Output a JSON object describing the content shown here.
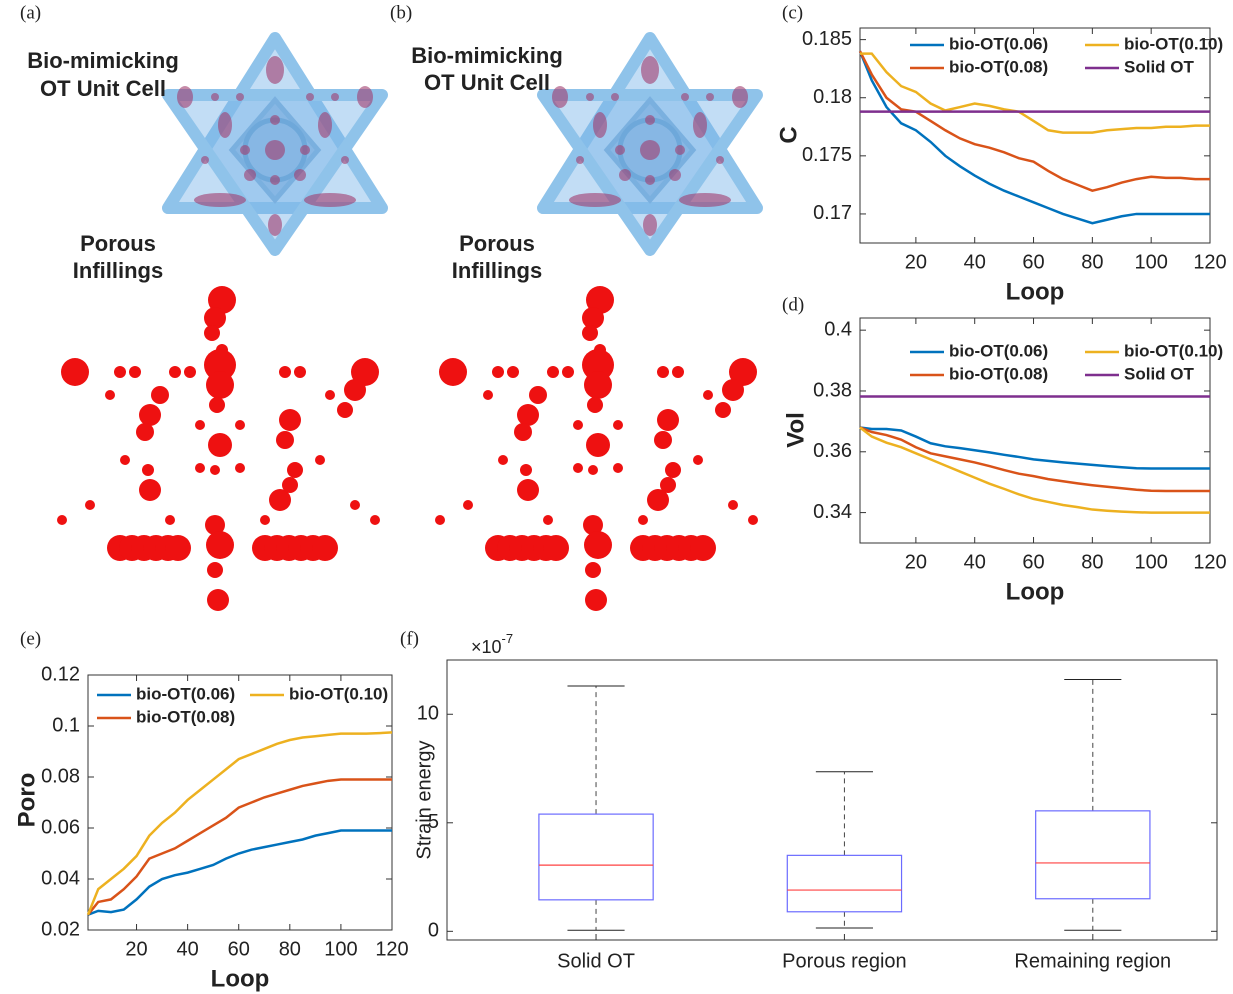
{
  "panels": [
    {
      "label": "(a)",
      "unit_cell_title": [
        "Bio-mimicking",
        "OT Unit Cell"
      ],
      "infill_title": [
        "Porous",
        "Infillings"
      ]
    },
    {
      "label": "(b)",
      "unit_cell_title": [
        "Bio-mimicking",
        "OT Unit Cell"
      ],
      "infill_title": [
        "Porous",
        "Infillings"
      ]
    }
  ],
  "chart_data": [
    {
      "type": "line",
      "label": "(c)",
      "ylabel": "C",
      "xlabel": "Loop",
      "x": [
        1,
        5,
        10,
        15,
        20,
        25,
        30,
        35,
        40,
        45,
        50,
        55,
        60,
        65,
        70,
        75,
        80,
        85,
        90,
        95,
        100,
        105,
        110,
        115,
        120
      ],
      "xlim": [
        1,
        120
      ],
      "xticks": [
        20,
        40,
        60,
        80,
        100,
        120
      ],
      "ylim": [
        0.1675,
        0.186
      ],
      "yticks": [
        0.17,
        0.175,
        0.18,
        0.185
      ],
      "legend": "top",
      "series": [
        {
          "name": "bio-OT(0.06)",
          "color": "#0072BD",
          "values": [
            0.184,
            0.1815,
            0.1792,
            0.1778,
            0.1772,
            0.1762,
            0.175,
            0.1741,
            0.1733,
            0.1726,
            0.172,
            0.1715,
            0.171,
            0.1705,
            0.17,
            0.1696,
            0.1692,
            0.1695,
            0.1698,
            0.17,
            0.17,
            0.17,
            0.17,
            0.17,
            0.17
          ]
        },
        {
          "name": "bio-OT(0.08)",
          "color": "#D95319",
          "values": [
            0.184,
            0.182,
            0.18,
            0.179,
            0.1788,
            0.178,
            0.1772,
            0.1765,
            0.176,
            0.1757,
            0.1753,
            0.1748,
            0.1745,
            0.1737,
            0.173,
            0.1725,
            0.172,
            0.1723,
            0.1727,
            0.173,
            0.1732,
            0.1731,
            0.1731,
            0.173,
            0.173
          ]
        },
        {
          "name": "bio-OT(0.10)",
          "color": "#EDB120",
          "values": [
            0.1838,
            0.1838,
            0.1822,
            0.181,
            0.1805,
            0.1795,
            0.1789,
            0.1792,
            0.1795,
            0.1793,
            0.179,
            0.1788,
            0.178,
            0.1772,
            0.177,
            0.177,
            0.177,
            0.1772,
            0.1773,
            0.1774,
            0.1774,
            0.1775,
            0.1775,
            0.1776,
            0.1776
          ]
        },
        {
          "name": "Solid OT",
          "color": "#7E2F8E",
          "values": [
            0.1788,
            0.1788,
            0.1788,
            0.1788,
            0.1788,
            0.1788,
            0.1788,
            0.1788,
            0.1788,
            0.1788,
            0.1788,
            0.1788,
            0.1788,
            0.1788,
            0.1788,
            0.1788,
            0.1788,
            0.1788,
            0.1788,
            0.1788,
            0.1788,
            0.1788,
            0.1788,
            0.1788,
            0.1788
          ]
        }
      ]
    },
    {
      "type": "line",
      "label": "(d)",
      "ylabel": "Vol",
      "xlabel": "Loop",
      "x": [
        1,
        5,
        10,
        15,
        20,
        25,
        30,
        35,
        40,
        45,
        50,
        55,
        60,
        65,
        70,
        75,
        80,
        85,
        90,
        95,
        100,
        105,
        110,
        115,
        120
      ],
      "xlim": [
        1,
        120
      ],
      "xticks": [
        20,
        40,
        60,
        80,
        100,
        120
      ],
      "ylim": [
        0.33,
        0.404
      ],
      "yticks": [
        0.34,
        0.36,
        0.38,
        0.4
      ],
      "legend": "top",
      "series": [
        {
          "name": "bio-OT(0.06)",
          "color": "#0072BD",
          "values": [
            0.368,
            0.3675,
            0.3675,
            0.367,
            0.365,
            0.3628,
            0.3618,
            0.3612,
            0.3605,
            0.3598,
            0.359,
            0.3583,
            0.3575,
            0.357,
            0.3565,
            0.3561,
            0.3557,
            0.3553,
            0.3549,
            0.3546,
            0.3545,
            0.3545,
            0.3545,
            0.3545,
            0.3545
          ]
        },
        {
          "name": "bio-OT(0.08)",
          "color": "#D95319",
          "values": [
            0.368,
            0.3665,
            0.3655,
            0.364,
            0.3615,
            0.3595,
            0.3585,
            0.3575,
            0.3565,
            0.3553,
            0.354,
            0.3528,
            0.352,
            0.351,
            0.3503,
            0.3496,
            0.349,
            0.3485,
            0.348,
            0.3475,
            0.3472,
            0.3471,
            0.3471,
            0.3471,
            0.3471
          ]
        },
        {
          "name": "bio-OT(0.10)",
          "color": "#EDB120",
          "values": [
            0.368,
            0.365,
            0.363,
            0.3615,
            0.3595,
            0.3575,
            0.3555,
            0.3535,
            0.3515,
            0.3495,
            0.3478,
            0.346,
            0.3445,
            0.3435,
            0.3425,
            0.3418,
            0.341,
            0.3406,
            0.3403,
            0.3401,
            0.34,
            0.34,
            0.34,
            0.34,
            0.34
          ]
        },
        {
          "name": "Solid OT",
          "color": "#7E2F8E",
          "values": [
            0.3782,
            0.3782,
            0.3782,
            0.3782,
            0.3782,
            0.3782,
            0.3782,
            0.3782,
            0.3782,
            0.3782,
            0.3782,
            0.3782,
            0.3782,
            0.3782,
            0.3782,
            0.3782,
            0.3782,
            0.3782,
            0.3782,
            0.3782,
            0.3782,
            0.3782,
            0.3782,
            0.3782,
            0.3782
          ]
        }
      ]
    },
    {
      "type": "line",
      "label": "(e)",
      "ylabel": "Poro",
      "xlabel": "Loop",
      "x": [
        1,
        5,
        10,
        15,
        20,
        25,
        30,
        35,
        40,
        45,
        50,
        55,
        60,
        65,
        70,
        75,
        80,
        85,
        90,
        95,
        100,
        105,
        110,
        115,
        120
      ],
      "xlim": [
        1,
        120
      ],
      "xticks": [
        20,
        40,
        60,
        80,
        100,
        120
      ],
      "ylim": [
        0.02,
        0.12
      ],
      "yticks": [
        0.02,
        0.04,
        0.06,
        0.08,
        0.1,
        0.12
      ],
      "legend": "top",
      "series": [
        {
          "name": "bio-OT(0.06)",
          "color": "#0072BD",
          "values": [
            0.026,
            0.0275,
            0.027,
            0.028,
            0.032,
            0.037,
            0.04,
            0.0415,
            0.0425,
            0.044,
            0.0455,
            0.048,
            0.05,
            0.0515,
            0.0525,
            0.0535,
            0.0545,
            0.0555,
            0.057,
            0.058,
            0.059,
            0.059,
            0.059,
            0.059,
            0.059
          ]
        },
        {
          "name": "bio-OT(0.08)",
          "color": "#D95319",
          "values": [
            0.026,
            0.031,
            0.032,
            0.036,
            0.041,
            0.048,
            0.05,
            0.052,
            0.055,
            0.058,
            0.061,
            0.064,
            0.068,
            0.07,
            0.072,
            0.0735,
            0.075,
            0.0765,
            0.0775,
            0.0785,
            0.079,
            0.079,
            0.079,
            0.079,
            0.079
          ]
        },
        {
          "name": "bio-OT(0.10)",
          "color": "#EDB120",
          "values": [
            0.026,
            0.036,
            0.04,
            0.044,
            0.049,
            0.057,
            0.062,
            0.066,
            0.071,
            0.075,
            0.079,
            0.083,
            0.087,
            0.089,
            0.091,
            0.093,
            0.0945,
            0.0955,
            0.096,
            0.0965,
            0.097,
            0.097,
            0.097,
            0.0972,
            0.0975
          ]
        }
      ]
    },
    {
      "type": "box",
      "label": "(f)",
      "ylabel": "Strain energy",
      "y_multiplier": {
        "base": "×10",
        "exponent": "-7"
      },
      "categories": [
        "Solid OT",
        "Porous region",
        "Remaining region"
      ],
      "boxes": [
        {
          "low": 0.05,
          "q1": 1.45,
          "median": 3.05,
          "q3": 5.4,
          "high": 11.3
        },
        {
          "low": 0.15,
          "q1": 0.9,
          "median": 1.9,
          "q3": 3.5,
          "high": 7.35
        },
        {
          "low": 0.05,
          "q1": 1.5,
          "median": 3.15,
          "q3": 5.55,
          "high": 11.6
        }
      ],
      "box_color": "#6b6bff",
      "median_color": "#ff4040",
      "ylim": [
        -0.4,
        12.5
      ],
      "yticks": [
        0,
        5,
        10
      ]
    }
  ]
}
